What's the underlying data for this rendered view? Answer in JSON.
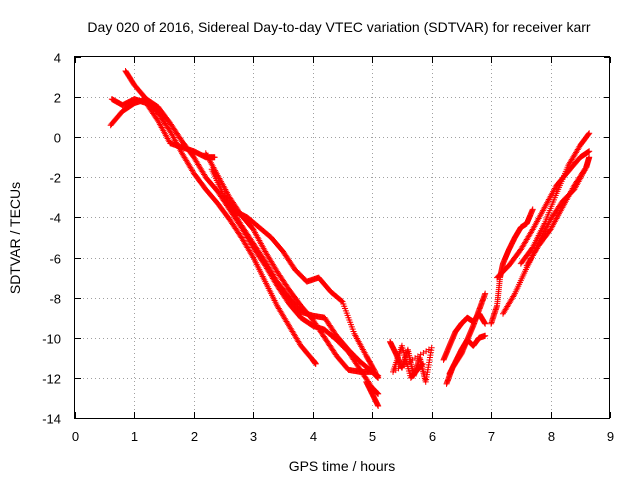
{
  "chart_data": {
    "type": "scatter",
    "title": "Day 020 of 2016, Sidereal Day-to-day VTEC variation (SDTVAR) for receiver karr",
    "xlabel": "GPS time / hours",
    "ylabel": "SDTVAR / TECUs",
    "xlim": [
      0,
      9
    ],
    "ylim": [
      -14,
      4
    ],
    "xticks": [
      0,
      1,
      2,
      3,
      4,
      5,
      6,
      7,
      8,
      9
    ],
    "yticks": [
      -14,
      -12,
      -10,
      -8,
      -6,
      -4,
      -2,
      0,
      2,
      4
    ],
    "grid": true,
    "marker": "plus",
    "series_color": "#ff0000",
    "series": [
      {
        "name": "track-1",
        "points": [
          [
            0.62,
            1.9
          ],
          [
            0.8,
            1.6
          ],
          [
            1.0,
            1.9
          ],
          [
            1.2,
            1.7
          ],
          [
            1.4,
            0.8
          ],
          [
            1.6,
            -0.3
          ],
          [
            1.8,
            -0.5
          ],
          [
            2.0,
            -0.7
          ],
          [
            2.2,
            -1.0
          ],
          [
            2.35,
            -1.0
          ]
        ]
      },
      {
        "name": "track-2",
        "points": [
          [
            0.85,
            3.3
          ],
          [
            1.0,
            2.6
          ],
          [
            1.2,
            1.9
          ],
          [
            1.4,
            1.2
          ],
          [
            1.6,
            0.3
          ],
          [
            1.8,
            -0.8
          ],
          [
            2.0,
            -1.8
          ],
          [
            2.2,
            -2.6
          ],
          [
            2.4,
            -3.3
          ],
          [
            2.6,
            -4.1
          ],
          [
            2.8,
            -5.0
          ],
          [
            3.0,
            -6.0
          ],
          [
            3.2,
            -7.2
          ],
          [
            3.4,
            -8.4
          ],
          [
            3.6,
            -9.4
          ],
          [
            3.8,
            -10.4
          ],
          [
            4.0,
            -11.1
          ],
          [
            4.05,
            -11.3
          ]
        ]
      },
      {
        "name": "track-3",
        "points": [
          [
            0.6,
            0.6
          ],
          [
            0.8,
            1.3
          ],
          [
            1.0,
            1.7
          ],
          [
            1.2,
            1.9
          ],
          [
            1.4,
            1.5
          ],
          [
            1.6,
            0.7
          ],
          [
            1.8,
            -0.2
          ],
          [
            2.0,
            -1.0
          ],
          [
            2.2,
            -2.0
          ],
          [
            2.4,
            -2.7
          ],
          [
            2.6,
            -3.6
          ],
          [
            2.8,
            -4.5
          ],
          [
            3.0,
            -5.5
          ],
          [
            3.2,
            -6.4
          ],
          [
            3.4,
            -7.4
          ],
          [
            3.6,
            -8.3
          ],
          [
            3.8,
            -9.0
          ],
          [
            4.0,
            -9.4
          ],
          [
            4.2,
            -9.6
          ],
          [
            4.4,
            -10.1
          ],
          [
            4.6,
            -10.7
          ],
          [
            4.8,
            -11.6
          ],
          [
            5.0,
            -12.5
          ],
          [
            5.1,
            -12.8
          ]
        ]
      },
      {
        "name": "track-4",
        "points": [
          [
            2.6,
            -3.4
          ],
          [
            2.8,
            -4.4
          ],
          [
            3.0,
            -5.3
          ],
          [
            3.2,
            -6.2
          ],
          [
            3.4,
            -7.2
          ],
          [
            3.6,
            -8.0
          ],
          [
            3.8,
            -8.7
          ],
          [
            4.0,
            -8.9
          ],
          [
            4.2,
            -9.0
          ],
          [
            4.4,
            -9.9
          ],
          [
            4.6,
            -10.6
          ],
          [
            4.8,
            -11.2
          ],
          [
            5.0,
            -11.7
          ],
          [
            5.1,
            -11.9
          ]
        ]
      },
      {
        "name": "track-5",
        "points": [
          [
            2.3,
            -1.6
          ],
          [
            2.5,
            -2.9
          ],
          [
            2.7,
            -3.7
          ],
          [
            2.9,
            -4.0
          ],
          [
            3.1,
            -4.5
          ],
          [
            3.3,
            -5.0
          ],
          [
            3.5,
            -5.7
          ],
          [
            3.7,
            -6.6
          ],
          [
            3.9,
            -7.2
          ],
          [
            4.1,
            -7.0
          ],
          [
            4.3,
            -7.7
          ],
          [
            4.5,
            -8.2
          ],
          [
            4.7,
            -9.8
          ],
          [
            4.9,
            -10.9
          ],
          [
            5.05,
            -11.7
          ]
        ]
      },
      {
        "name": "track-6",
        "points": [
          [
            2.2,
            -0.8
          ],
          [
            2.4,
            -1.9
          ],
          [
            2.6,
            -3.0
          ],
          [
            2.8,
            -3.9
          ],
          [
            3.0,
            -4.6
          ],
          [
            3.2,
            -5.7
          ],
          [
            3.4,
            -6.7
          ],
          [
            3.6,
            -7.6
          ],
          [
            3.8,
            -8.4
          ],
          [
            4.0,
            -9.1
          ],
          [
            4.2,
            -10.0
          ],
          [
            4.4,
            -10.9
          ],
          [
            4.6,
            -11.6
          ],
          [
            4.8,
            -11.7
          ],
          [
            5.0,
            -11.7
          ],
          [
            5.1,
            -12.0
          ]
        ]
      },
      {
        "name": "track-7",
        "points": [
          [
            4.9,
            -12.2
          ],
          [
            5.0,
            -12.8
          ],
          [
            5.1,
            -13.4
          ]
        ]
      },
      {
        "name": "cluster-8",
        "points": [
          [
            5.3,
            -10.2
          ],
          [
            5.4,
            -10.8
          ],
          [
            5.5,
            -11.5
          ],
          [
            5.6,
            -10.6
          ],
          [
            5.7,
            -11.9
          ],
          [
            5.8,
            -11.0
          ],
          [
            5.9,
            -12.2
          ],
          [
            6.0,
            -10.5
          ],
          [
            5.35,
            -11.7
          ],
          [
            5.5,
            -10.4
          ],
          [
            5.65,
            -12.0
          ],
          [
            5.85,
            -11.3
          ]
        ]
      },
      {
        "name": "track-9",
        "points": [
          [
            6.25,
            -12.3
          ],
          [
            6.35,
            -11.5
          ],
          [
            6.5,
            -10.8
          ],
          [
            6.6,
            -10.1
          ],
          [
            6.7,
            -9.4
          ],
          [
            6.8,
            -8.6
          ],
          [
            6.9,
            -7.8
          ]
        ]
      },
      {
        "name": "track-10",
        "points": [
          [
            6.2,
            -11.1
          ],
          [
            6.3,
            -10.4
          ],
          [
            6.4,
            -9.7
          ],
          [
            6.5,
            -9.3
          ],
          [
            6.6,
            -9.0
          ],
          [
            6.7,
            -9.2
          ],
          [
            6.8,
            -8.8
          ],
          [
            6.9,
            -9.3
          ]
        ]
      },
      {
        "name": "track-11",
        "points": [
          [
            6.3,
            -11.8
          ],
          [
            6.4,
            -11.2
          ],
          [
            6.5,
            -10.6
          ],
          [
            6.6,
            -10.1
          ],
          [
            6.7,
            -10.4
          ],
          [
            6.8,
            -10.0
          ],
          [
            6.9,
            -9.9
          ]
        ]
      },
      {
        "name": "track-12",
        "points": [
          [
            7.0,
            -9.3
          ],
          [
            7.1,
            -8.4
          ],
          [
            7.15,
            -7.0
          ],
          [
            7.2,
            -6.3
          ],
          [
            7.3,
            -5.6
          ],
          [
            7.4,
            -5.0
          ],
          [
            7.5,
            -4.5
          ],
          [
            7.6,
            -4.3
          ],
          [
            7.7,
            -3.6
          ]
        ]
      },
      {
        "name": "track-13",
        "points": [
          [
            7.1,
            -7.0
          ],
          [
            7.3,
            -6.4
          ],
          [
            7.5,
            -5.6
          ],
          [
            7.7,
            -4.6
          ],
          [
            7.9,
            -3.5
          ],
          [
            8.1,
            -2.4
          ],
          [
            8.3,
            -1.7
          ],
          [
            8.5,
            -1.0
          ],
          [
            8.65,
            -0.7
          ]
        ]
      },
      {
        "name": "track-14",
        "points": [
          [
            7.2,
            -8.8
          ],
          [
            7.4,
            -7.8
          ],
          [
            7.6,
            -6.5
          ],
          [
            7.8,
            -5.3
          ],
          [
            8.0,
            -4.1
          ],
          [
            8.2,
            -3.2
          ],
          [
            8.4,
            -2.6
          ],
          [
            8.6,
            -1.5
          ]
        ]
      },
      {
        "name": "track-15",
        "points": [
          [
            7.5,
            -6.3
          ],
          [
            7.7,
            -5.5
          ],
          [
            7.9,
            -4.3
          ],
          [
            8.1,
            -2.8
          ],
          [
            8.3,
            -1.4
          ],
          [
            8.5,
            -0.4
          ],
          [
            8.65,
            0.2
          ]
        ]
      },
      {
        "name": "track-16",
        "points": [
          [
            7.6,
            -6.4
          ],
          [
            7.8,
            -5.4
          ],
          [
            8.0,
            -4.6
          ],
          [
            8.2,
            -3.5
          ],
          [
            8.4,
            -2.4
          ],
          [
            8.6,
            -1.5
          ],
          [
            8.65,
            -1.0
          ]
        ]
      }
    ]
  }
}
